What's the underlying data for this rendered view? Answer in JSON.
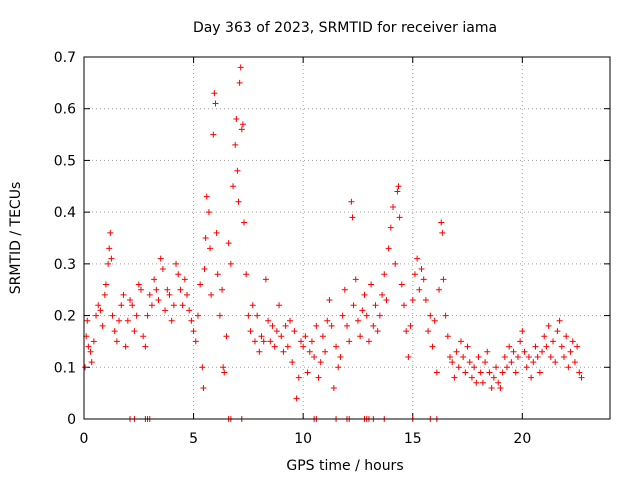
{
  "chart_data": {
    "type": "scatter",
    "title": "Day 363 of 2023, SRMTID for receiver iama",
    "xlabel": "GPS time / hours",
    "ylabel": "SRMTID / TECUs",
    "xlim": [
      0,
      24
    ],
    "ylim": [
      0,
      0.7
    ],
    "xticks": [
      0,
      5,
      10,
      15,
      20
    ],
    "xtick_labels": [
      "0",
      "5",
      "10",
      "15",
      "20"
    ],
    "yticks": [
      0,
      0.1,
      0.2,
      0.3,
      0.4,
      0.5,
      0.6,
      0.7
    ],
    "ytick_labels": [
      "0",
      "0.1",
      "0.2",
      "0.3",
      "0.4",
      "0.5",
      "0.6",
      "0.7"
    ],
    "grid": true,
    "marker": "+",
    "series": [
      {
        "name": "SRMTID",
        "color": "#ff0000",
        "points": [
          [
            0.05,
            0.1
          ],
          [
            0.1,
            0.16
          ],
          [
            0.15,
            0.19
          ],
          [
            0.2,
            0.14
          ],
          [
            0.3,
            0.13
          ],
          [
            0.35,
            0.11
          ],
          [
            0.45,
            0.15
          ],
          [
            0.55,
            0.2
          ],
          [
            0.65,
            0.22
          ],
          [
            0.75,
            0.21
          ],
          [
            0.85,
            0.18
          ],
          [
            0.95,
            0.24
          ],
          [
            1.0,
            0.26
          ],
          [
            1.1,
            0.3
          ],
          [
            1.15,
            0.33
          ],
          [
            1.2,
            0.36
          ],
          [
            1.25,
            0.31
          ],
          [
            1.3,
            0.2
          ],
          [
            1.4,
            0.17
          ],
          [
            1.5,
            0.15
          ],
          [
            1.6,
            0.19
          ],
          [
            1.7,
            0.22
          ],
          [
            1.8,
            0.24
          ],
          [
            1.9,
            0.14
          ],
          [
            2.0,
            0.19
          ],
          [
            2.1,
            0.23
          ],
          [
            2.2,
            0.22
          ],
          [
            2.3,
            0.17
          ],
          [
            2.4,
            0.2
          ],
          [
            2.5,
            0.26
          ],
          [
            2.6,
            0.25
          ],
          [
            2.7,
            0.16
          ],
          [
            2.8,
            0.14
          ],
          [
            2.9,
            0.2
          ],
          [
            3.0,
            0.24
          ],
          [
            3.1,
            0.22
          ],
          [
            3.2,
            0.27
          ],
          [
            3.3,
            0.25
          ],
          [
            3.4,
            0.23
          ],
          [
            3.5,
            0.31
          ],
          [
            3.6,
            0.29
          ],
          [
            3.7,
            0.21
          ],
          [
            3.8,
            0.25
          ],
          [
            3.9,
            0.24
          ],
          [
            4.0,
            0.19
          ],
          [
            4.1,
            0.22
          ],
          [
            4.2,
            0.3
          ],
          [
            4.3,
            0.28
          ],
          [
            4.4,
            0.25
          ],
          [
            4.5,
            0.22
          ],
          [
            4.6,
            0.27
          ],
          [
            4.7,
            0.24
          ],
          [
            4.8,
            0.21
          ],
          [
            4.9,
            0.19
          ],
          [
            5.0,
            0.17
          ],
          [
            5.1,
            0.15
          ],
          [
            5.2,
            0.2
          ],
          [
            5.3,
            0.26
          ],
          [
            5.4,
            0.1
          ],
          [
            5.45,
            0.06
          ],
          [
            5.5,
            0.29
          ],
          [
            5.55,
            0.35
          ],
          [
            5.6,
            0.43
          ],
          [
            5.7,
            0.4
          ],
          [
            5.75,
            0.33
          ],
          [
            5.8,
            0.24
          ],
          [
            5.9,
            0.55
          ],
          [
            5.95,
            0.63
          ],
          [
            6.0,
            0.61
          ],
          [
            6.05,
            0.36
          ],
          [
            6.1,
            0.28
          ],
          [
            6.2,
            0.2
          ],
          [
            6.3,
            0.25
          ],
          [
            6.35,
            0.1
          ],
          [
            6.4,
            0.09
          ],
          [
            6.5,
            0.16
          ],
          [
            6.6,
            0.34
          ],
          [
            6.7,
            0.3
          ],
          [
            6.8,
            0.45
          ],
          [
            6.9,
            0.53
          ],
          [
            6.95,
            0.58
          ],
          [
            7.0,
            0.48
          ],
          [
            7.05,
            0.42
          ],
          [
            7.1,
            0.65
          ],
          [
            7.15,
            0.68
          ],
          [
            7.2,
            0.56
          ],
          [
            7.25,
            0.57
          ],
          [
            7.3,
            0.38
          ],
          [
            7.4,
            0.28
          ],
          [
            7.5,
            0.2
          ],
          [
            7.6,
            0.17
          ],
          [
            7.7,
            0.22
          ],
          [
            7.8,
            0.15
          ],
          [
            7.9,
            0.2
          ],
          [
            8.0,
            0.13
          ],
          [
            8.1,
            0.16
          ],
          [
            8.2,
            0.15
          ],
          [
            8.3,
            0.27
          ],
          [
            8.4,
            0.19
          ],
          [
            8.5,
            0.15
          ],
          [
            8.6,
            0.18
          ],
          [
            8.7,
            0.14
          ],
          [
            8.8,
            0.17
          ],
          [
            8.9,
            0.22
          ],
          [
            9.0,
            0.16
          ],
          [
            9.1,
            0.13
          ],
          [
            9.2,
            0.18
          ],
          [
            9.3,
            0.14
          ],
          [
            9.4,
            0.19
          ],
          [
            9.5,
            0.11
          ],
          [
            9.6,
            0.17
          ],
          [
            9.7,
            0.04
          ],
          [
            9.8,
            0.08
          ],
          [
            9.9,
            0.15
          ],
          [
            10.0,
            0.14
          ],
          [
            10.1,
            0.16
          ],
          [
            10.2,
            0.09
          ],
          [
            10.3,
            0.13
          ],
          [
            10.4,
            0.15
          ],
          [
            10.5,
            0.12
          ],
          [
            10.6,
            0.18
          ],
          [
            10.7,
            0.08
          ],
          [
            10.8,
            0.11
          ],
          [
            10.9,
            0.16
          ],
          [
            11.0,
            0.13
          ],
          [
            11.1,
            0.19
          ],
          [
            11.2,
            0.23
          ],
          [
            11.3,
            0.18
          ],
          [
            11.4,
            0.06
          ],
          [
            11.5,
            0.14
          ],
          [
            11.6,
            0.1
          ],
          [
            11.7,
            0.12
          ],
          [
            11.8,
            0.2
          ],
          [
            11.9,
            0.25
          ],
          [
            12.0,
            0.18
          ],
          [
            12.1,
            0.15
          ],
          [
            12.2,
            0.42
          ],
          [
            12.25,
            0.39
          ],
          [
            12.3,
            0.22
          ],
          [
            12.4,
            0.27
          ],
          [
            12.5,
            0.19
          ],
          [
            12.6,
            0.16
          ],
          [
            12.7,
            0.21
          ],
          [
            12.8,
            0.24
          ],
          [
            12.9,
            0.2
          ],
          [
            13.0,
            0.15
          ],
          [
            13.1,
            0.26
          ],
          [
            13.2,
            0.18
          ],
          [
            13.3,
            0.22
          ],
          [
            13.4,
            0.17
          ],
          [
            13.5,
            0.2
          ],
          [
            13.6,
            0.24
          ],
          [
            13.7,
            0.28
          ],
          [
            13.8,
            0.23
          ],
          [
            13.9,
            0.33
          ],
          [
            14.0,
            0.37
          ],
          [
            14.1,
            0.41
          ],
          [
            14.2,
            0.3
          ],
          [
            14.3,
            0.44
          ],
          [
            14.35,
            0.45
          ],
          [
            14.4,
            0.39
          ],
          [
            14.5,
            0.26
          ],
          [
            14.6,
            0.22
          ],
          [
            14.7,
            0.17
          ],
          [
            14.8,
            0.12
          ],
          [
            14.9,
            0.18
          ],
          [
            15.0,
            0.23
          ],
          [
            15.1,
            0.28
          ],
          [
            15.2,
            0.31
          ],
          [
            15.3,
            0.25
          ],
          [
            15.4,
            0.29
          ],
          [
            15.5,
            0.27
          ],
          [
            15.6,
            0.23
          ],
          [
            15.7,
            0.17
          ],
          [
            15.8,
            0.2
          ],
          [
            15.9,
            0.14
          ],
          [
            16.0,
            0.19
          ],
          [
            16.1,
            0.09
          ],
          [
            16.2,
            0.25
          ],
          [
            16.3,
            0.38
          ],
          [
            16.35,
            0.36
          ],
          [
            16.4,
            0.27
          ],
          [
            16.5,
            0.2
          ],
          [
            16.6,
            0.16
          ],
          [
            16.7,
            0.12
          ],
          [
            16.8,
            0.11
          ],
          [
            16.9,
            0.08
          ],
          [
            17.0,
            0.13
          ],
          [
            17.1,
            0.1
          ],
          [
            17.2,
            0.15
          ],
          [
            17.3,
            0.12
          ],
          [
            17.4,
            0.09
          ],
          [
            17.5,
            0.14
          ],
          [
            17.6,
            0.11
          ],
          [
            17.7,
            0.08
          ],
          [
            17.8,
            0.1
          ],
          [
            17.9,
            0.07
          ],
          [
            18.0,
            0.12
          ],
          [
            18.1,
            0.09
          ],
          [
            18.2,
            0.07
          ],
          [
            18.3,
            0.11
          ],
          [
            18.4,
            0.13
          ],
          [
            18.5,
            0.09
          ],
          [
            18.6,
            0.06
          ],
          [
            18.7,
            0.08
          ],
          [
            18.8,
            0.1
          ],
          [
            18.9,
            0.07
          ],
          [
            19.0,
            0.06
          ],
          [
            19.1,
            0.09
          ],
          [
            19.2,
            0.12
          ],
          [
            19.3,
            0.1
          ],
          [
            19.4,
            0.14
          ],
          [
            19.5,
            0.11
          ],
          [
            19.6,
            0.13
          ],
          [
            19.7,
            0.09
          ],
          [
            19.8,
            0.12
          ],
          [
            19.9,
            0.15
          ],
          [
            20.0,
            0.17
          ],
          [
            20.1,
            0.13
          ],
          [
            20.2,
            0.1
          ],
          [
            20.3,
            0.12
          ],
          [
            20.4,
            0.08
          ],
          [
            20.5,
            0.11
          ],
          [
            20.6,
            0.14
          ],
          [
            20.7,
            0.12
          ],
          [
            20.8,
            0.09
          ],
          [
            20.9,
            0.13
          ],
          [
            21.0,
            0.16
          ],
          [
            21.1,
            0.14
          ],
          [
            21.2,
            0.18
          ],
          [
            21.3,
            0.12
          ],
          [
            21.4,
            0.15
          ],
          [
            21.5,
            0.11
          ],
          [
            21.6,
            0.17
          ],
          [
            21.7,
            0.19
          ],
          [
            21.8,
            0.14
          ],
          [
            21.9,
            0.12
          ],
          [
            22.0,
            0.16
          ],
          [
            22.1,
            0.1
          ],
          [
            22.2,
            0.13
          ],
          [
            22.3,
            0.15
          ],
          [
            22.4,
            0.11
          ],
          [
            22.5,
            0.14
          ],
          [
            22.6,
            0.09
          ],
          [
            22.7,
            0.08
          ]
        ]
      }
    ],
    "zero_markers_x": [
      2.1,
      2.3,
      2.8,
      2.9,
      3.0,
      6.6,
      6.7,
      7.2,
      10.5,
      10.6,
      11.5,
      12.0,
      12.1,
      12.8,
      12.9,
      13.0,
      13.2,
      13.7,
      15.0,
      15.8,
      16.1
    ]
  }
}
